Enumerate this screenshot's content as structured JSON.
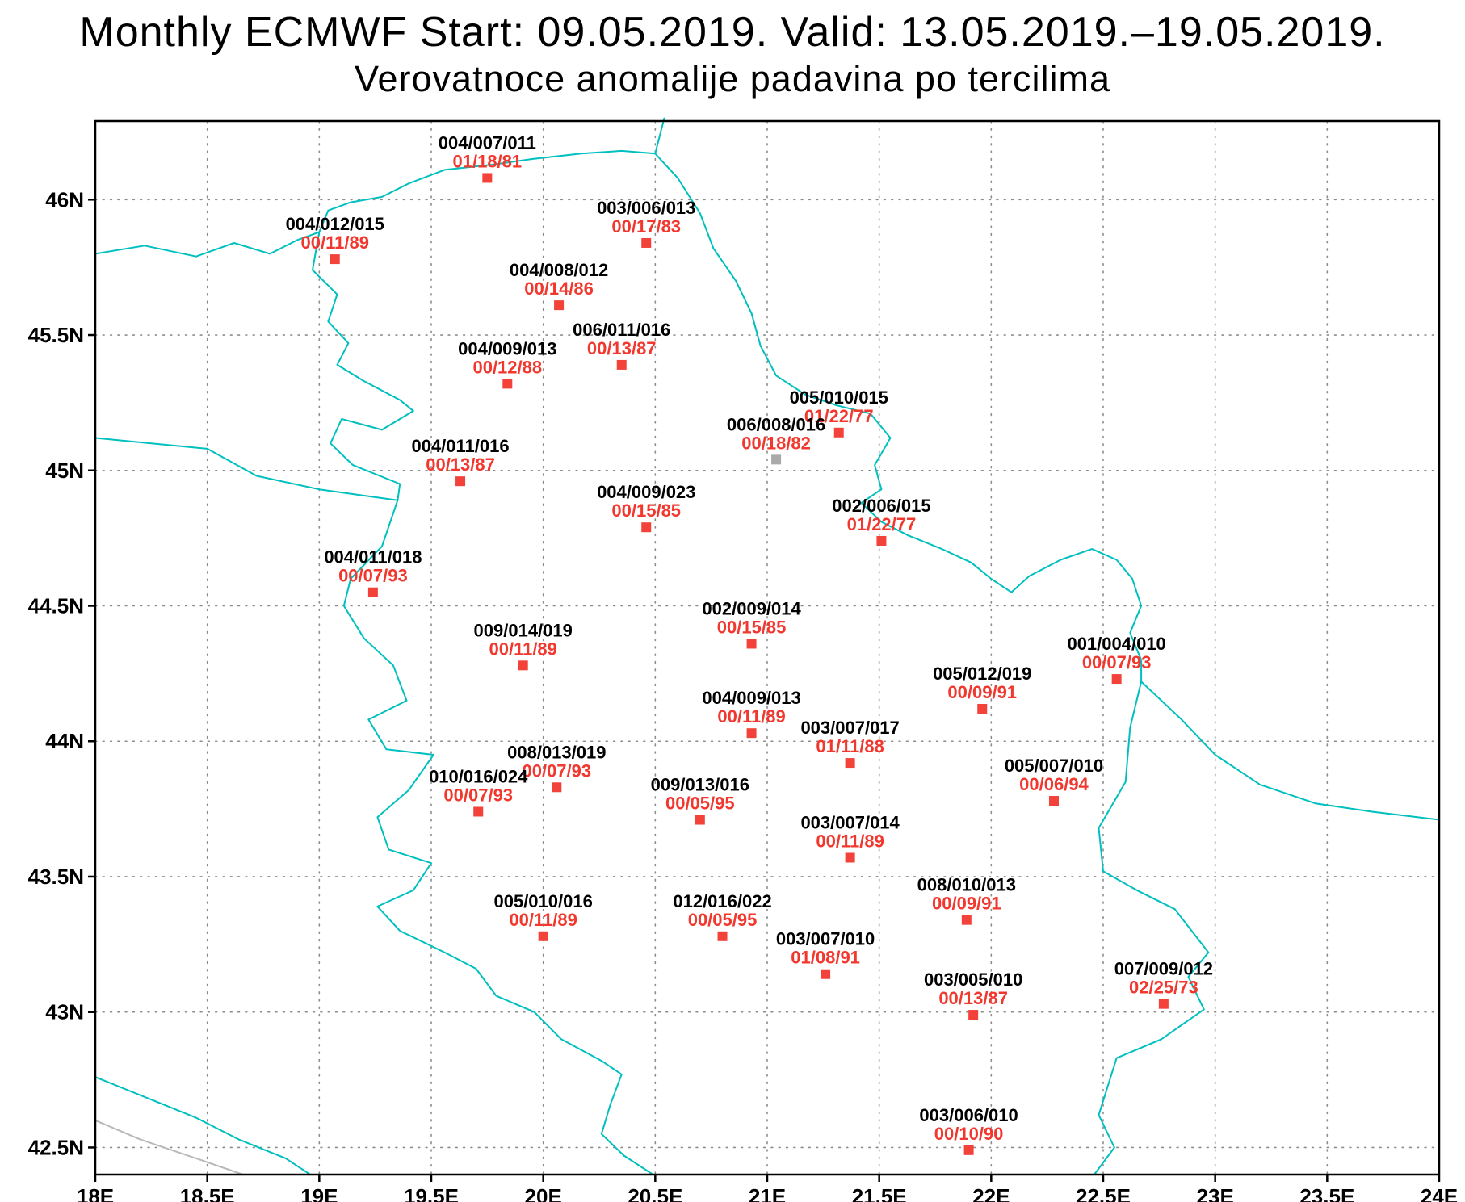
{
  "titles": {
    "line1": "Monthly ECMWF Start: 09.05.2019. Valid: 13.05.2019.–19.05.2019.",
    "line2": "Verovatnoce anomalije padavina po tercilima"
  },
  "map": {
    "lon_min": 18,
    "lon_max": 24,
    "lat_min": 42.4,
    "lat_max": 46.29,
    "frame_color": "#000000",
    "grid_color": "#8c8c8c",
    "border_color": "#00bfbf",
    "coast_color": "#b8b8b8",
    "station_id_color": "#000000",
    "station_prob_color": "#f2382e",
    "marker_colors": {
      "red": "#f2423a",
      "gray": "#a9a9a9"
    }
  },
  "x_axis": {
    "ticks": [
      {
        "lon": 18.0,
        "label": "18E"
      },
      {
        "lon": 18.5,
        "label": "18.5E"
      },
      {
        "lon": 19.0,
        "label": "19E"
      },
      {
        "lon": 19.5,
        "label": "19.5E"
      },
      {
        "lon": 20.0,
        "label": "20E"
      },
      {
        "lon": 20.5,
        "label": "20.5E"
      },
      {
        "lon": 21.0,
        "label": "21E"
      },
      {
        "lon": 21.5,
        "label": "21.5E"
      },
      {
        "lon": 22.0,
        "label": "22E"
      },
      {
        "lon": 22.5,
        "label": "22.5E"
      },
      {
        "lon": 23.0,
        "label": "23E"
      },
      {
        "lon": 23.5,
        "label": "23.5E"
      },
      {
        "lon": 24.0,
        "label": "24E"
      }
    ]
  },
  "y_axis": {
    "ticks": [
      {
        "lat": 42.5,
        "label": "42.5N"
      },
      {
        "lat": 43.0,
        "label": "43N"
      },
      {
        "lat": 43.5,
        "label": "43.5N"
      },
      {
        "lat": 44.0,
        "label": "44N"
      },
      {
        "lat": 44.5,
        "label": "44.5N"
      },
      {
        "lat": 45.0,
        "label": "45N"
      },
      {
        "lat": 45.5,
        "label": "45.5N"
      },
      {
        "lat": 46.0,
        "label": "46N"
      }
    ]
  },
  "borders": [
    {
      "name": "hungary-border",
      "color": "#00bfbf",
      "points": [
        [
          18.0,
          45.8
        ],
        [
          18.22,
          45.83
        ],
        [
          18.45,
          45.79
        ],
        [
          18.62,
          45.84
        ],
        [
          18.78,
          45.8
        ],
        [
          18.9,
          45.85
        ],
        [
          19.0,
          45.88
        ],
        [
          19.04,
          45.96
        ],
        [
          19.14,
          45.99
        ],
        [
          19.28,
          46.01
        ],
        [
          19.4,
          46.06
        ],
        [
          19.56,
          46.11
        ],
        [
          19.78,
          46.13
        ],
        [
          19.95,
          46.15
        ],
        [
          20.17,
          46.17
        ],
        [
          20.35,
          46.18
        ],
        [
          20.5,
          46.17
        ],
        [
          20.54,
          46.3
        ]
      ]
    },
    {
      "name": "serbia-romania-border",
      "color": "#00bfbf",
      "points": [
        [
          20.5,
          46.17
        ],
        [
          20.6,
          46.08
        ],
        [
          20.7,
          45.95
        ],
        [
          20.76,
          45.82
        ],
        [
          20.86,
          45.7
        ],
        [
          20.93,
          45.58
        ],
        [
          20.97,
          45.46
        ],
        [
          21.04,
          45.35
        ],
        [
          21.17,
          45.28
        ],
        [
          21.31,
          45.24
        ],
        [
          21.46,
          45.21
        ],
        [
          21.55,
          45.12
        ],
        [
          21.48,
          45.02
        ],
        [
          21.51,
          44.93
        ],
        [
          21.42,
          44.88
        ],
        [
          21.51,
          44.81
        ],
        [
          21.63,
          44.76
        ],
        [
          21.78,
          44.71
        ],
        [
          21.91,
          44.66
        ],
        [
          22.0,
          44.6
        ],
        [
          22.09,
          44.55
        ],
        [
          22.17,
          44.61
        ],
        [
          22.31,
          44.67
        ],
        [
          22.45,
          44.71
        ],
        [
          22.56,
          44.67
        ],
        [
          22.63,
          44.6
        ],
        [
          22.67,
          44.5
        ],
        [
          22.62,
          44.4
        ],
        [
          22.67,
          44.3
        ],
        [
          22.67,
          44.22
        ]
      ]
    },
    {
      "name": "romania-bulgaria-border",
      "color": "#00bfbf",
      "points": [
        [
          22.67,
          44.22
        ],
        [
          22.85,
          44.08
        ],
        [
          23.0,
          43.95
        ],
        [
          23.2,
          43.84
        ],
        [
          23.45,
          43.77
        ],
        [
          23.7,
          43.74
        ],
        [
          24.0,
          43.71
        ]
      ]
    },
    {
      "name": "serbia-bulgaria-border",
      "color": "#00bfbf",
      "points": [
        [
          22.67,
          44.22
        ],
        [
          22.62,
          44.05
        ],
        [
          22.6,
          43.85
        ],
        [
          22.48,
          43.68
        ],
        [
          22.5,
          43.52
        ],
        [
          22.65,
          43.45
        ],
        [
          22.82,
          43.38
        ],
        [
          22.97,
          43.22
        ],
        [
          22.88,
          43.13
        ],
        [
          22.95,
          43.01
        ],
        [
          22.76,
          42.9
        ],
        [
          22.56,
          42.83
        ],
        [
          22.48,
          42.62
        ],
        [
          22.55,
          42.5
        ],
        [
          22.46,
          42.4
        ]
      ]
    },
    {
      "name": "serbia-croatia-border",
      "color": "#00bfbf",
      "points": [
        [
          19.0,
          45.88
        ],
        [
          18.97,
          45.74
        ],
        [
          19.08,
          45.65
        ],
        [
          19.04,
          45.55
        ],
        [
          19.13,
          45.47
        ],
        [
          19.08,
          45.39
        ],
        [
          19.2,
          45.33
        ],
        [
          19.36,
          45.26
        ],
        [
          19.42,
          45.22
        ],
        [
          19.28,
          45.15
        ],
        [
          19.1,
          45.19
        ],
        [
          19.05,
          45.1
        ],
        [
          19.15,
          45.02
        ],
        [
          19.36,
          44.95
        ],
        [
          19.35,
          44.89
        ]
      ]
    },
    {
      "name": "bosnia-croatia-border",
      "color": "#00bfbf",
      "points": [
        [
          18.0,
          45.12
        ],
        [
          18.25,
          45.1
        ],
        [
          18.5,
          45.08
        ],
        [
          18.72,
          44.98
        ],
        [
          19.0,
          44.93
        ],
        [
          19.35,
          44.89
        ]
      ]
    },
    {
      "name": "serbia-bosnia-border",
      "color": "#00bfbf",
      "points": [
        [
          19.35,
          44.89
        ],
        [
          19.28,
          44.72
        ],
        [
          19.14,
          44.6
        ],
        [
          19.11,
          44.5
        ],
        [
          19.2,
          44.38
        ],
        [
          19.33,
          44.28
        ],
        [
          19.39,
          44.15
        ],
        [
          19.22,
          44.08
        ],
        [
          19.3,
          43.97
        ],
        [
          19.51,
          43.95
        ],
        [
          19.4,
          43.82
        ],
        [
          19.26,
          43.72
        ],
        [
          19.31,
          43.6
        ],
        [
          19.5,
          43.55
        ],
        [
          19.42,
          43.45
        ],
        [
          19.26,
          43.39
        ],
        [
          19.36,
          43.3
        ],
        [
          19.56,
          43.22
        ],
        [
          19.7,
          43.16
        ],
        [
          19.79,
          43.06
        ],
        [
          19.96,
          43.0
        ],
        [
          20.08,
          42.9
        ],
        [
          20.26,
          42.82
        ],
        [
          20.35,
          42.77
        ],
        [
          20.3,
          42.66
        ],
        [
          20.26,
          42.55
        ],
        [
          20.36,
          42.47
        ],
        [
          20.49,
          42.4
        ]
      ]
    },
    {
      "name": "montenegro-border",
      "color": "#00bfbf",
      "points": [
        [
          18.0,
          42.76
        ],
        [
          18.24,
          42.68
        ],
        [
          18.45,
          42.61
        ],
        [
          18.64,
          42.53
        ],
        [
          18.85,
          42.46
        ],
        [
          18.96,
          42.4
        ]
      ]
    },
    {
      "name": "adriatic-coastline",
      "color": "#b8b8b8",
      "points": [
        [
          18.0,
          42.6
        ],
        [
          18.2,
          42.53
        ],
        [
          18.45,
          42.46
        ],
        [
          18.66,
          42.4
        ]
      ]
    }
  ],
  "stations": [
    {
      "id": "004/007/011",
      "prob": "01/18/81",
      "lon": 19.75,
      "lat": 46.08,
      "marker": "red"
    },
    {
      "id": "004/012/015",
      "prob": "00/11/89",
      "lon": 19.07,
      "lat": 45.78,
      "marker": "red"
    },
    {
      "id": "003/006/013",
      "prob": "00/17/83",
      "lon": 20.46,
      "lat": 45.84,
      "marker": "red"
    },
    {
      "id": "004/008/012",
      "prob": "00/14/86",
      "lon": 20.07,
      "lat": 45.61,
      "marker": "red"
    },
    {
      "id": "006/011/016",
      "prob": "00/13/87",
      "lon": 20.35,
      "lat": 45.39,
      "marker": "red"
    },
    {
      "id": "004/009/013",
      "prob": "00/12/88",
      "lon": 19.84,
      "lat": 45.32,
      "marker": "red"
    },
    {
      "id": "005/010/015",
      "prob": "01/22/77",
      "lon": 21.32,
      "lat": 45.14,
      "marker": "red"
    },
    {
      "id": "006/008/016",
      "prob": "00/18/82",
      "lon": 21.04,
      "lat": 45.04,
      "marker": "gray"
    },
    {
      "id": "004/011/016",
      "prob": "00/13/87",
      "lon": 19.63,
      "lat": 44.96,
      "marker": "red"
    },
    {
      "id": "004/009/023",
      "prob": "00/15/85",
      "lon": 20.46,
      "lat": 44.79,
      "marker": "red"
    },
    {
      "id": "002/006/015",
      "prob": "01/22/77",
      "lon": 21.51,
      "lat": 44.74,
      "marker": "red"
    },
    {
      "id": "004/011/018",
      "prob": "00/07/93",
      "lon": 19.24,
      "lat": 44.55,
      "marker": "red"
    },
    {
      "id": "002/009/014",
      "prob": "00/15/85",
      "lon": 20.93,
      "lat": 44.36,
      "marker": "red"
    },
    {
      "id": "009/014/019",
      "prob": "00/11/89",
      "lon": 19.91,
      "lat": 44.28,
      "marker": "red"
    },
    {
      "id": "001/004/010",
      "prob": "00/07/93",
      "lon": 22.56,
      "lat": 44.23,
      "marker": "red"
    },
    {
      "id": "005/012/019",
      "prob": "00/09/91",
      "lon": 21.96,
      "lat": 44.12,
      "marker": "red"
    },
    {
      "id": "004/009/013",
      "prob": "00/11/89",
      "lon": 20.93,
      "lat": 44.03,
      "marker": "red"
    },
    {
      "id": "003/007/017",
      "prob": "01/11/88",
      "lon": 21.37,
      "lat": 43.92,
      "marker": "red"
    },
    {
      "id": "008/013/019",
      "prob": "00/07/93",
      "lon": 20.06,
      "lat": 43.83,
      "marker": "red"
    },
    {
      "id": "005/007/010",
      "prob": "00/06/94",
      "lon": 22.28,
      "lat": 43.78,
      "marker": "red"
    },
    {
      "id": "010/016/024",
      "prob": "00/07/93",
      "lon": 19.71,
      "lat": 43.74,
      "marker": "red"
    },
    {
      "id": "009/013/016",
      "prob": "00/05/95",
      "lon": 20.7,
      "lat": 43.71,
      "marker": "red"
    },
    {
      "id": "003/007/014",
      "prob": "00/11/89",
      "lon": 21.37,
      "lat": 43.57,
      "marker": "red"
    },
    {
      "id": "008/010/013",
      "prob": "00/09/91",
      "lon": 21.89,
      "lat": 43.34,
      "marker": "red"
    },
    {
      "id": "005/010/016",
      "prob": "00/11/89",
      "lon": 20.0,
      "lat": 43.28,
      "marker": "red"
    },
    {
      "id": "012/016/022",
      "prob": "00/05/95",
      "lon": 20.8,
      "lat": 43.28,
      "marker": "red"
    },
    {
      "id": "003/007/010",
      "prob": "01/08/91",
      "lon": 21.26,
      "lat": 43.14,
      "marker": "red"
    },
    {
      "id": "007/009/012",
      "prob": "02/25/73",
      "lon": 22.77,
      "lat": 43.03,
      "marker": "red"
    },
    {
      "id": "003/005/010",
      "prob": "00/13/87",
      "lon": 21.92,
      "lat": 42.99,
      "marker": "red"
    },
    {
      "id": "003/006/010",
      "prob": "00/10/90",
      "lon": 21.9,
      "lat": 42.49,
      "marker": "red"
    }
  ]
}
